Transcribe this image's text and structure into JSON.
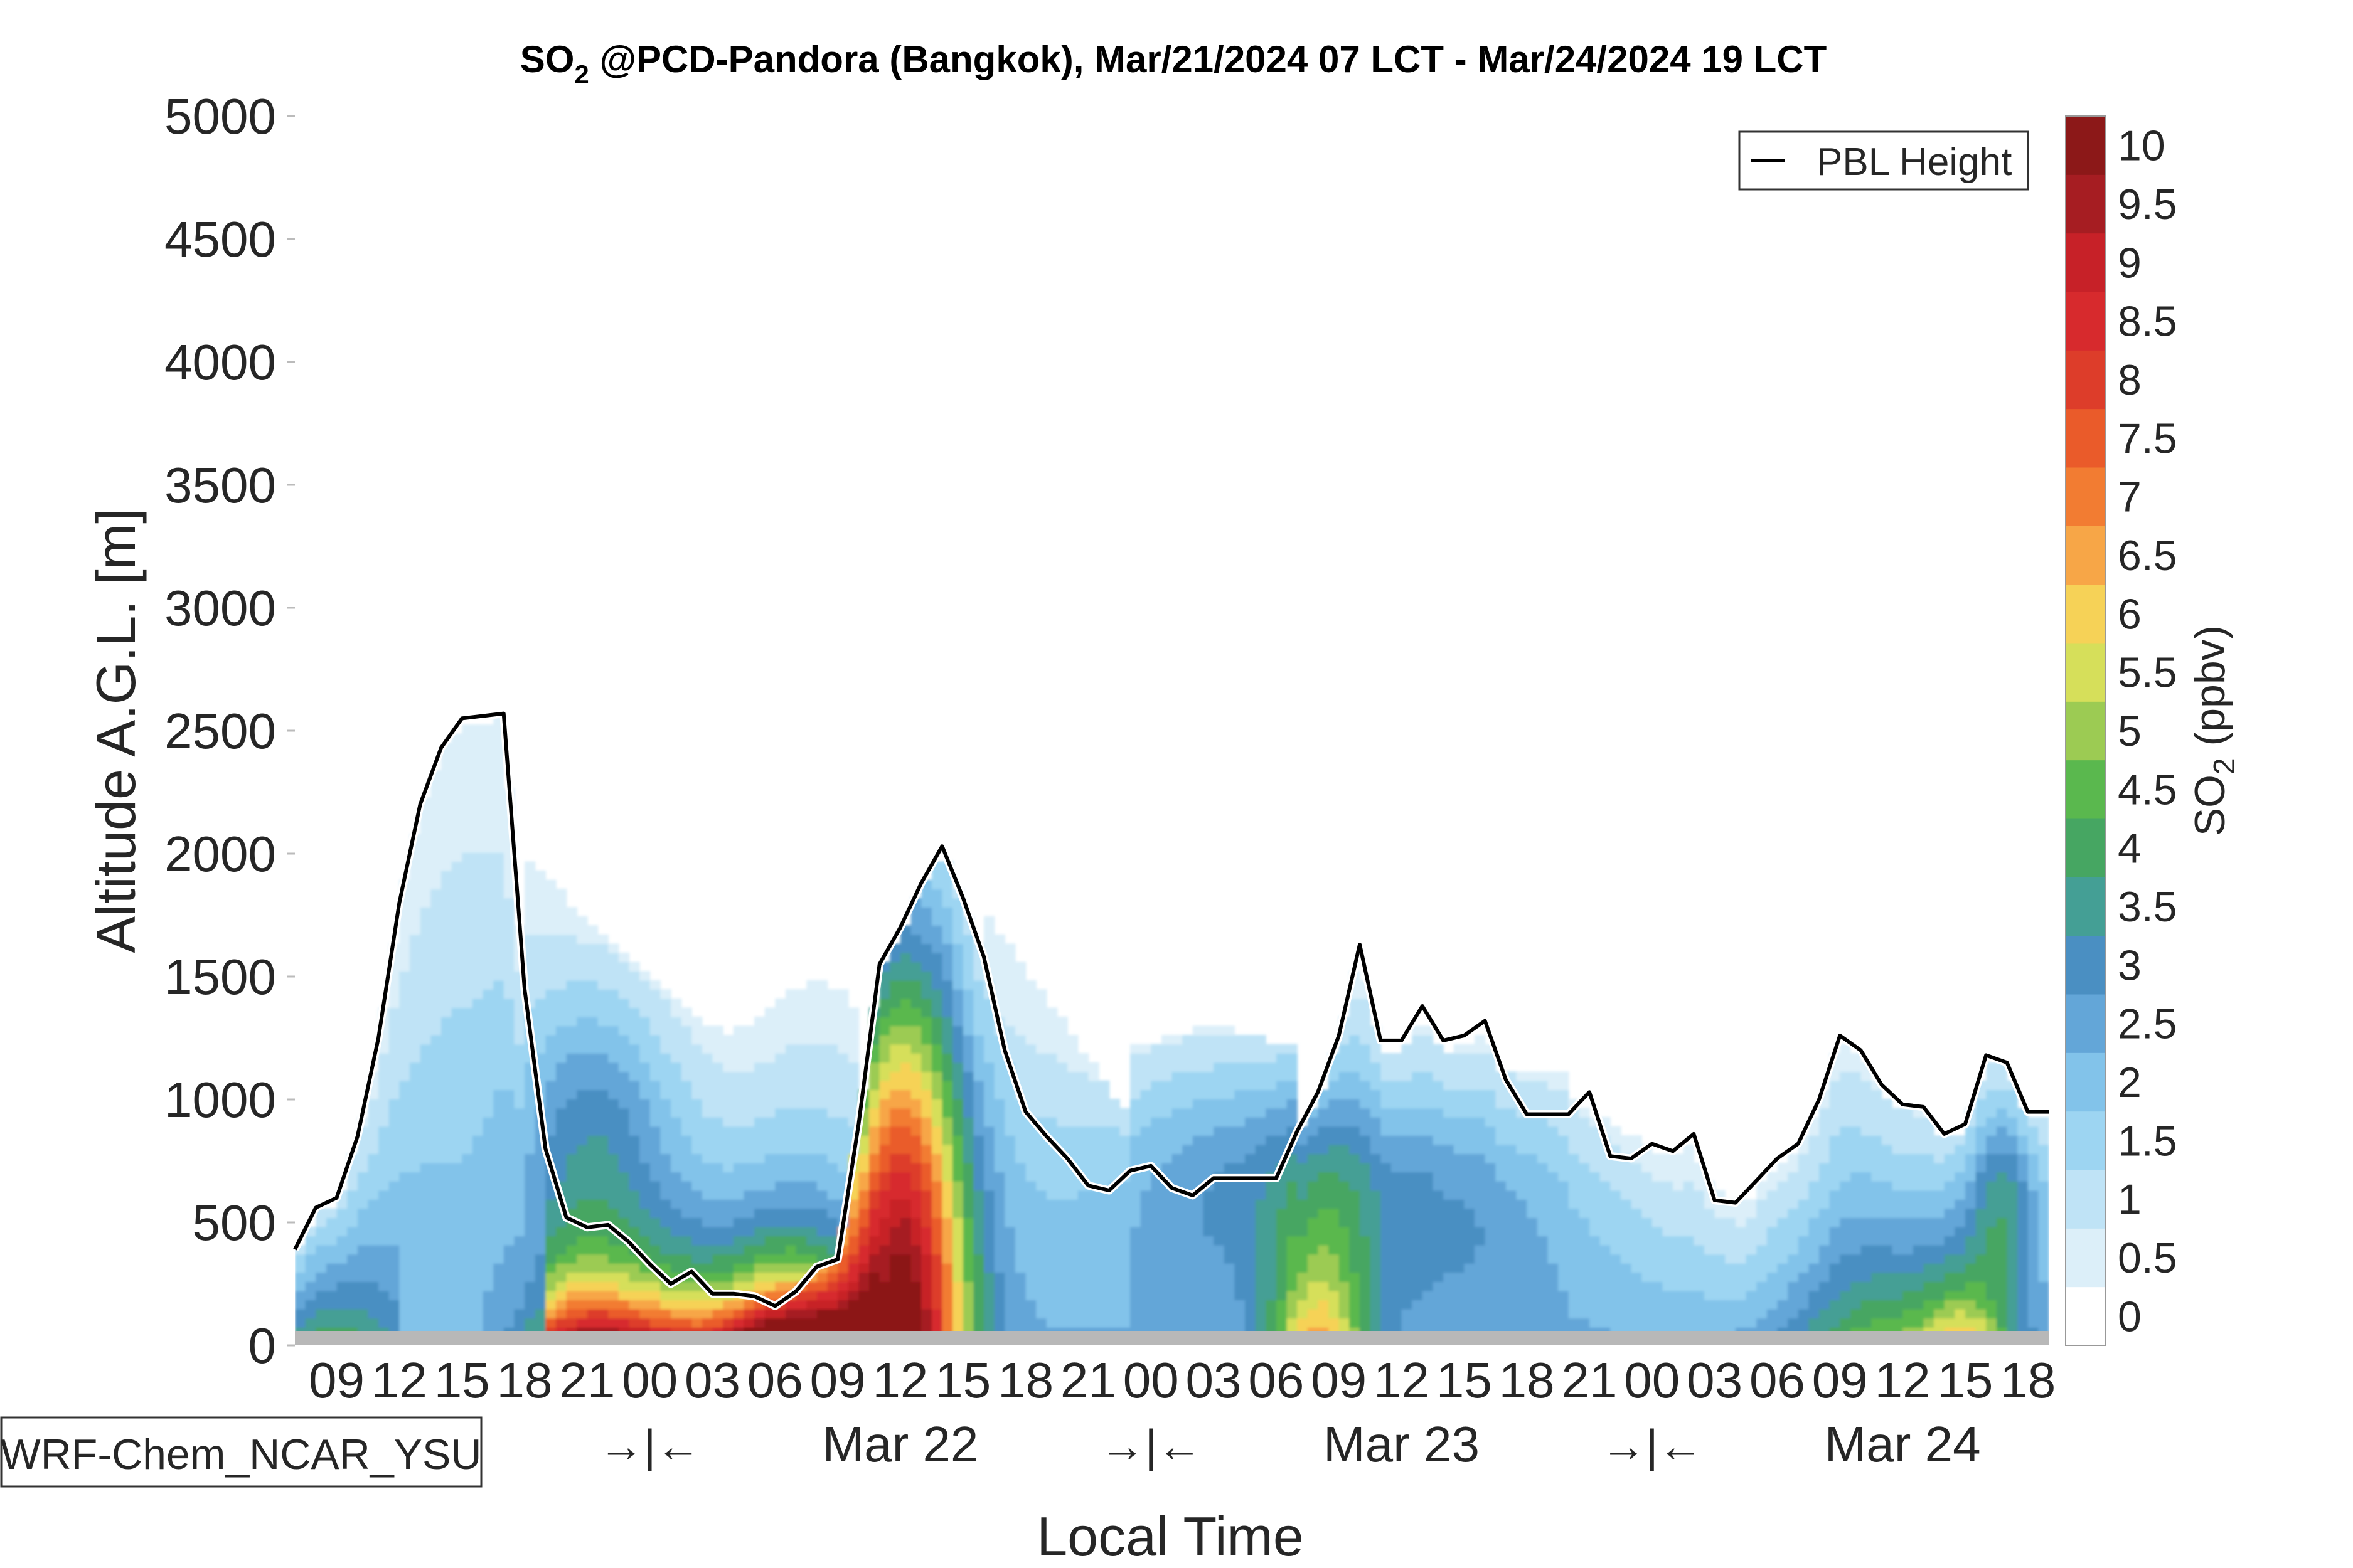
{
  "chart_data": {
    "type": "heatmap",
    "title": "SO2 @PCD-Pandora (Bangkok), Mar/21/2024 07 LCT - Mar/24/2024 19 LCT",
    "title_parts": {
      "species": "SO",
      "species_sub": "2",
      "rest": " @PCD-Pandora (Bangkok), Mar/21/2024 07 LCT - Mar/24/2024 19 LCT"
    },
    "xlabel": "Local Time",
    "ylabel": "Altitude A.G.L. [m]",
    "colorbar_label": {
      "main": "SO",
      "sub": "2",
      "unit": " (ppbv)"
    },
    "model_label": "WRF-Chem_NCAR_YSU",
    "legend": {
      "entries": [
        "PBL Height"
      ],
      "position": "top-right"
    },
    "ylim": [
      0,
      5000
    ],
    "yticks": [
      "0",
      "500",
      "1000",
      "1500",
      "2000",
      "2500",
      "3000",
      "3500",
      "4000",
      "4500",
      "5000"
    ],
    "xlim_hours": [
      0,
      84
    ],
    "xticks": [
      {
        "h": 2,
        "label": "09"
      },
      {
        "h": 5,
        "label": "12"
      },
      {
        "h": 8,
        "label": "15"
      },
      {
        "h": 11,
        "label": "18"
      },
      {
        "h": 14,
        "label": "21"
      },
      {
        "h": 17,
        "label": "00"
      },
      {
        "h": 20,
        "label": "03"
      },
      {
        "h": 23,
        "label": "06"
      },
      {
        "h": 26,
        "label": "09"
      },
      {
        "h": 29,
        "label": "12"
      },
      {
        "h": 32,
        "label": "15"
      },
      {
        "h": 35,
        "label": "18"
      },
      {
        "h": 38,
        "label": "21"
      },
      {
        "h": 41,
        "label": "00"
      },
      {
        "h": 44,
        "label": "03"
      },
      {
        "h": 47,
        "label": "06"
      },
      {
        "h": 50,
        "label": "09"
      },
      {
        "h": 53,
        "label": "12"
      },
      {
        "h": 56,
        "label": "15"
      },
      {
        "h": 59,
        "label": "18"
      },
      {
        "h": 62,
        "label": "21"
      },
      {
        "h": 65,
        "label": "00"
      },
      {
        "h": 68,
        "label": "03"
      },
      {
        "h": 71,
        "label": "06"
      },
      {
        "h": 74,
        "label": "09"
      },
      {
        "h": 77,
        "label": "12"
      },
      {
        "h": 80,
        "label": "15"
      },
      {
        "h": 83,
        "label": "18"
      }
    ],
    "day_labels": [
      {
        "h": 29,
        "label": "Mar 22"
      },
      {
        "h": 53,
        "label": "Mar 23"
      },
      {
        "h": 77,
        "label": "Mar 24"
      }
    ],
    "midnight_markers": [
      {
        "h": 17,
        "label": "→|←"
      },
      {
        "h": 41,
        "label": "→|←"
      },
      {
        "h": 65,
        "label": "→|←"
      }
    ],
    "colorbar": {
      "levels": [
        0,
        0.5,
        1,
        1.5,
        2,
        2.5,
        3,
        3.5,
        4,
        4.5,
        5,
        5.5,
        6,
        6.5,
        7,
        7.5,
        8,
        8.5,
        9,
        9.5,
        10,
        10.5
      ],
      "tick_labels": [
        "0",
        "0.5",
        "1",
        "1.5",
        "2",
        "2.5",
        "3",
        "3.5",
        "4",
        "4.5",
        "5",
        "5.5",
        "6",
        "6.5",
        "7",
        "7.5",
        "8",
        "8.5",
        "9",
        "9.5",
        "10"
      ],
      "colors": [
        "#ffffff",
        "#dceff9",
        "#bfe3f6",
        "#9dd5f2",
        "#82c3ea",
        "#63a6d8",
        "#4a8fc2",
        "#449f95",
        "#46a662",
        "#5ab84e",
        "#9ccb53",
        "#d6df5a",
        "#f6d257",
        "#f7a647",
        "#f27c32",
        "#ea5b2a",
        "#dd3d2a",
        "#d72a2d",
        "#c72128",
        "#a61d22",
        "#8c1818"
      ]
    },
    "pbl_height": {
      "name": "PBL Height",
      "h": [
        0,
        1,
        2,
        3,
        4,
        5,
        6,
        7,
        8,
        9,
        10,
        11,
        12,
        13,
        14,
        15,
        16,
        17,
        18,
        19,
        20,
        21,
        22,
        23,
        24,
        25,
        26,
        27,
        28,
        29,
        30,
        31,
        32,
        33,
        34,
        35,
        36,
        37,
        38,
        39,
        40,
        41,
        42,
        43,
        44,
        45,
        46,
        47,
        48,
        49,
        50,
        51,
        52,
        53,
        54,
        55,
        56,
        57,
        58,
        59,
        60,
        61,
        62,
        63,
        64,
        65,
        66,
        67,
        68,
        69,
        70,
        71,
        72,
        73,
        74,
        75,
        76,
        77,
        78,
        79,
        80,
        81,
        82,
        83,
        84
      ],
      "values": [
        390,
        560,
        600,
        850,
        1250,
        1800,
        2200,
        2430,
        2550,
        2560,
        2570,
        1450,
        800,
        520,
        480,
        490,
        420,
        330,
        250,
        300,
        210,
        210,
        200,
        160,
        220,
        320,
        350,
        900,
        1550,
        1700,
        1880,
        2030,
        1820,
        1580,
        1200,
        950,
        850,
        760,
        650,
        630,
        710,
        730,
        640,
        610,
        680,
        680,
        680,
        680,
        870,
        1030,
        1260,
        1630,
        1240,
        1240,
        1380,
        1240,
        1260,
        1320,
        1080,
        940,
        940,
        940,
        1030,
        770,
        760,
        820,
        790,
        860,
        590,
        580,
        670,
        760,
        820,
        1000,
        1260,
        1200,
        1060,
        980,
        970,
        860,
        900,
        1180,
        1150,
        950,
        950
      ]
    }
  }
}
